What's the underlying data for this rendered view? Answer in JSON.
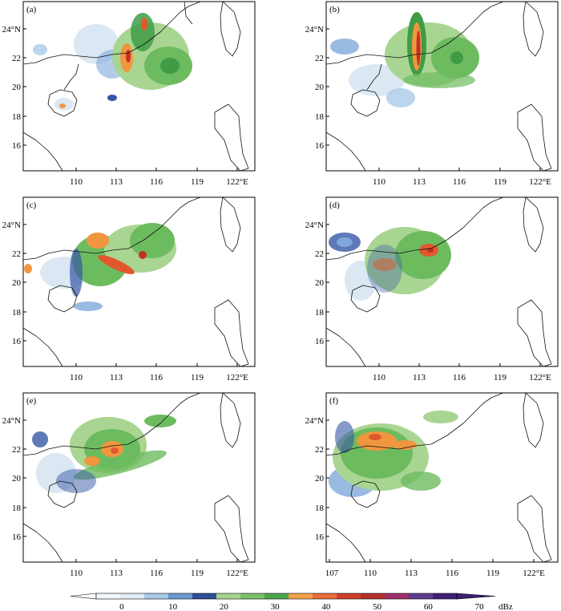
{
  "panels": [
    {
      "label": "(a)",
      "lat_ticks": [
        "24°N",
        "22",
        "20",
        "18",
        "16"
      ],
      "lon_ticks": [
        "110",
        "113",
        "116",
        "119",
        "122°E"
      ]
    },
    {
      "label": "(b)",
      "lat_ticks": [
        "24°N",
        "22",
        "20",
        "18",
        "16"
      ],
      "lon_ticks": [
        "110",
        "113",
        "116",
        "119",
        "122°E"
      ]
    },
    {
      "label": "(c)",
      "lat_ticks": [
        "24°N",
        "22",
        "20",
        "18",
        "16"
      ],
      "lon_ticks": [
        "110",
        "113",
        "116",
        "119",
        "122°E"
      ]
    },
    {
      "label": "(d)",
      "lat_ticks": [
        "24°N",
        "22",
        "20",
        "18",
        "16"
      ],
      "lon_ticks": [
        "110",
        "113",
        "116",
        "119",
        "122°E"
      ]
    },
    {
      "label": "(e)",
      "lat_ticks": [
        "24°N",
        "22",
        "20",
        "18",
        "16"
      ],
      "lon_ticks": [
        "110",
        "113",
        "116",
        "119",
        "122°E"
      ]
    },
    {
      "label": "(f)",
      "lat_ticks": [
        "24°N",
        "22",
        "20",
        "18",
        "16"
      ],
      "lon_ticks": [
        "107",
        "110",
        "113",
        "116",
        "119",
        "122°E"
      ]
    }
  ],
  "colorbar": {
    "unit": "dBz",
    "tick_labels": [
      "0",
      "10",
      "20",
      "30",
      "40",
      "50",
      "60",
      "70"
    ],
    "bins": [
      "#f2f8fb",
      "#e1eef6",
      "#a9cbe7",
      "#6b9ad1",
      "#2f4e9a",
      "#a6d58f",
      "#79c26a",
      "#4da64d",
      "#f3a04b",
      "#ec6b3a",
      "#cf3f2c",
      "#b62f2a",
      "#9c2f6b",
      "#5e3c91",
      "#3e1f74"
    ]
  },
  "reflectivity_colors": {
    "light": "#d7e6f3",
    "blue": "#7fa9da",
    "dark_blue": "#3657a5",
    "light_green": "#a8d591",
    "green": "#6dbb5f",
    "dark_green": "#3f9c45",
    "orange": "#f0963f",
    "red_orange": "#e2582e",
    "red": "#c33126"
  }
}
